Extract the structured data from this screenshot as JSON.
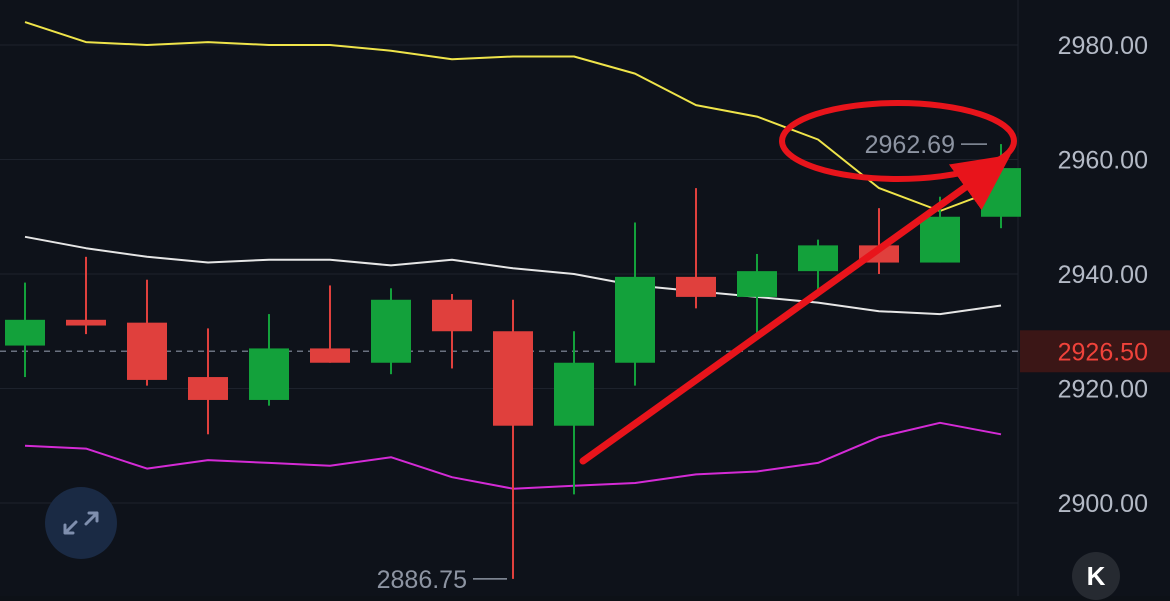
{
  "chart_data": {
    "type": "candlestick",
    "ylim": [
      2884,
      2987
    ],
    "y_ticks": [
      "2980.00",
      "2960.00",
      "2940.00",
      "2920.00",
      "2900.00"
    ],
    "y_tick_values": [
      2980,
      2960,
      2940,
      2920,
      2900
    ],
    "candles": [
      {
        "open": 2927.5,
        "high": 2938.5,
        "low": 2922.0,
        "close": 2932.0
      },
      {
        "open": 2932.0,
        "high": 2943.0,
        "low": 2929.5,
        "close": 2931.0
      },
      {
        "open": 2931.5,
        "high": 2939.0,
        "low": 2920.5,
        "close": 2921.5
      },
      {
        "open": 2922.0,
        "high": 2930.5,
        "low": 2912.0,
        "close": 2918.0
      },
      {
        "open": 2918.0,
        "high": 2933.0,
        "low": 2917.0,
        "close": 2927.0
      },
      {
        "open": 2927.0,
        "high": 2938.0,
        "low": 2924.5,
        "close": 2924.5
      },
      {
        "open": 2924.5,
        "high": 2937.5,
        "low": 2922.5,
        "close": 2935.5
      },
      {
        "open": 2935.5,
        "high": 2936.5,
        "low": 2923.5,
        "close": 2930.0
      },
      {
        "open": 2930.0,
        "high": 2935.5,
        "low": 2886.75,
        "close": 2913.5
      },
      {
        "open": 2913.5,
        "high": 2930.0,
        "low": 2901.5,
        "close": 2924.5
      },
      {
        "open": 2924.5,
        "high": 2949.0,
        "low": 2920.5,
        "close": 2939.5
      },
      {
        "open": 2939.5,
        "high": 2955.0,
        "low": 2934.0,
        "close": 2936.0
      },
      {
        "open": 2936.0,
        "high": 2943.5,
        "low": 2929.0,
        "close": 2940.5
      },
      {
        "open": 2940.5,
        "high": 2946.0,
        "low": 2937.0,
        "close": 2945.0
      },
      {
        "open": 2945.0,
        "high": 2951.5,
        "low": 2940.0,
        "close": 2942.0
      },
      {
        "open": 2942.0,
        "high": 2953.5,
        "low": 2942.0,
        "close": 2950.0
      },
      {
        "open": 2950.0,
        "high": 2962.69,
        "low": 2948.0,
        "close": 2958.5
      }
    ],
    "upper_band": [
      2984.0,
      2980.5,
      2980.0,
      2980.5,
      2980.0,
      2980.0,
      2979.0,
      2977.5,
      2978.0,
      2978.0,
      2975.0,
      2969.5,
      2967.5,
      2963.5,
      2955.0,
      2951.0,
      2955.0
    ],
    "middle_band": [
      2946.5,
      2944.5,
      2943.0,
      2942.0,
      2942.5,
      2942.5,
      2941.5,
      2942.5,
      2941.0,
      2940.0,
      2938.0,
      2937.0,
      2936.0,
      2935.0,
      2933.5,
      2933.0,
      2934.5
    ],
    "lower_band": [
      2910.0,
      2909.5,
      2906.0,
      2907.5,
      2907.0,
      2906.5,
      2908.0,
      2904.5,
      2902.5,
      2903.0,
      2903.5,
      2905.0,
      2905.5,
      2907.0,
      2911.5,
      2914.0,
      2912.0
    ],
    "current_price": 2926.5,
    "current_price_label": "2926.50",
    "high_annotation": {
      "value": 2962.69,
      "label": "2962.69"
    },
    "low_annotation": {
      "value": 2886.75,
      "label": "2886.75"
    },
    "colors": {
      "background": "#0e121a",
      "grid": "#1d222c",
      "up": "#13a13b",
      "down": "#e0403d",
      "upper_band": "#efe44a",
      "middle_band": "#e6e6e6",
      "lower_band": "#d42bd6",
      "current_price": "#f0423a",
      "highlight": "#e8141b"
    },
    "annotations": [
      "red ellipse around the high label",
      "red arrow pointing up toward the latest candle"
    ]
  },
  "controls": {
    "expand_icon": "expand-diagonal-icon",
    "collapse_icon": "collapse-left-icon",
    "collapse_glyph": "K"
  }
}
